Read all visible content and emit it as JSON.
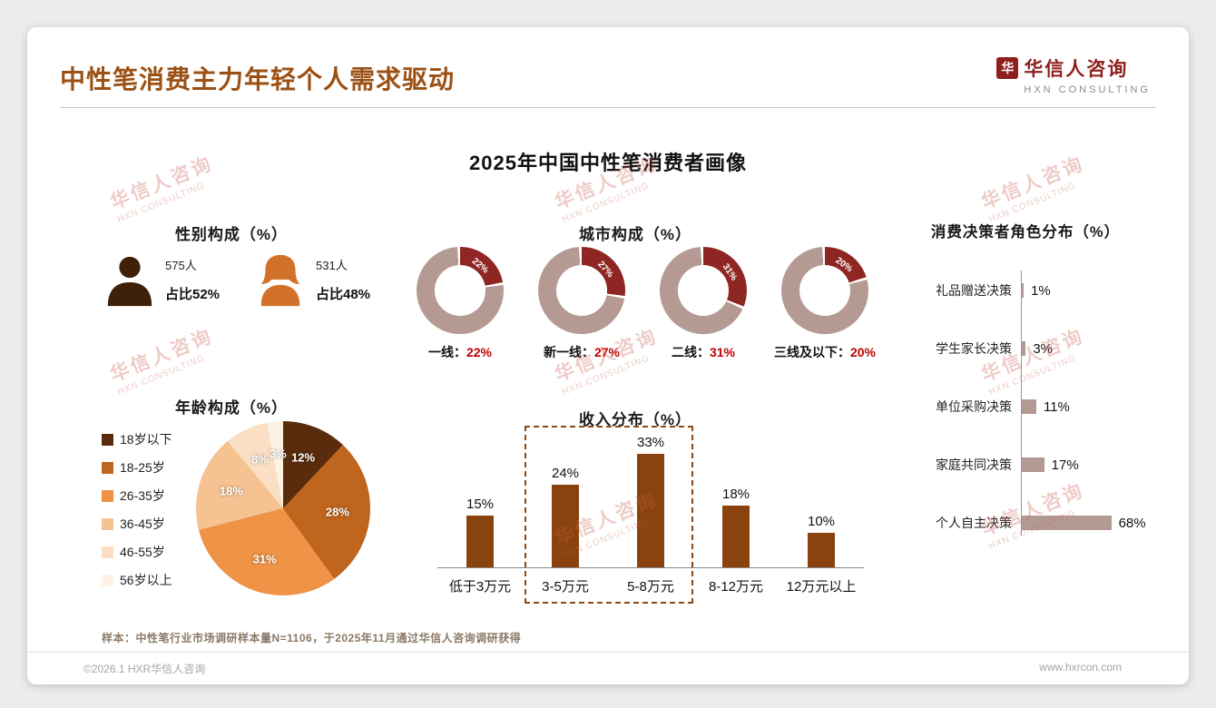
{
  "colors": {
    "accent_brown": "#9c5114",
    "logo_red": "#8e1f1c",
    "donut_base": "#b49a92",
    "donut_highlight": "#8e2723",
    "pct_red": "#c00000",
    "income_bar": "#8a430f",
    "decision_bar": "#b29a93",
    "male_icon": "#3f2008",
    "female_icon": "#d2722a"
  },
  "header": {
    "title": "中性笔消费主力年轻个人需求驱动",
    "logo_mark": "华",
    "logo_text": "华信人咨询",
    "logo_sub": "HXN CONSULTING"
  },
  "main_title": "2025年中国中性笔消费者画像",
  "watermark": {
    "line1": "华信人咨询",
    "line2": "HXN CONSULTING"
  },
  "gender": {
    "heading": "性别构成（%）",
    "male": {
      "count": "575人",
      "share": "占比52%"
    },
    "female": {
      "count": "531人",
      "share": "占比48%"
    }
  },
  "city": {
    "heading": "城市构成（%）",
    "items": [
      {
        "label": "一线：",
        "pct": "22%",
        "value": 22
      },
      {
        "label": "新一线：",
        "pct": "27%",
        "value": 27
      },
      {
        "label": "二线：",
        "pct": "31%",
        "value": 31
      },
      {
        "label": "三线及以下：",
        "pct": "20%",
        "value": 20
      }
    ]
  },
  "age": {
    "heading": "年龄构成（%）",
    "items": [
      {
        "label": "18岁以下",
        "pct": "12%",
        "value": 12,
        "color": "#5a2c0d"
      },
      {
        "label": "18-25岁",
        "pct": "28%",
        "value": 28,
        "color": "#bf651e"
      },
      {
        "label": "26-35岁",
        "pct": "31%",
        "value": 31,
        "color": "#ef9346"
      },
      {
        "label": "36-45岁",
        "pct": "18%",
        "value": 18,
        "color": "#f6c292"
      },
      {
        "label": "46-55岁",
        "pct": "8%",
        "value": 8,
        "color": "#fadfc4"
      },
      {
        "label": "56岁以上",
        "pct": "3%",
        "value": 3,
        "color": "#fdf2e4"
      }
    ]
  },
  "income": {
    "heading": "收入分布（%）",
    "items": [
      {
        "label": "低于3万元",
        "pct": "15%",
        "value": 15
      },
      {
        "label": "3-5万元",
        "pct": "24%",
        "value": 24
      },
      {
        "label": "5-8万元",
        "pct": "33%",
        "value": 33
      },
      {
        "label": "8-12万元",
        "pct": "18%",
        "value": 18
      },
      {
        "label": "12万元以上",
        "pct": "10%",
        "value": 10
      }
    ]
  },
  "decision": {
    "heading": "消费决策者角色分布（%）",
    "items": [
      {
        "label": "礼品赠送决策",
        "pct": "1%",
        "value": 1
      },
      {
        "label": "学生家长决策",
        "pct": "3%",
        "value": 3
      },
      {
        "label": "单位采购决策",
        "pct": "11%",
        "value": 11
      },
      {
        "label": "家庭共同决策",
        "pct": "17%",
        "value": 17
      },
      {
        "label": "个人自主决策",
        "pct": "68%",
        "value": 68
      }
    ]
  },
  "footnote": "样本：中性笔行业市场调研样本量N=1106，于2025年11月通过华信人咨询调研获得",
  "footer": {
    "left": "©2026.1 HXR华信人咨询",
    "right": "www.hxrcon.com"
  },
  "chart_data": [
    {
      "type": "table",
      "title": "性别构成（%）",
      "categories": [
        "男",
        "女"
      ],
      "counts": [
        575,
        531
      ],
      "values": [
        52,
        48
      ]
    },
    {
      "type": "pie",
      "variant": "donut-set",
      "title": "城市构成（%）",
      "categories": [
        "一线",
        "新一线",
        "二线",
        "三线及以下"
      ],
      "values": [
        22,
        27,
        31,
        20
      ],
      "highlight_color": "#8e2723",
      "base_color": "#b49a92"
    },
    {
      "type": "pie",
      "title": "年龄构成（%）",
      "categories": [
        "18岁以下",
        "18-25岁",
        "26-35岁",
        "36-45岁",
        "46-55岁",
        "56岁以上"
      ],
      "values": [
        12,
        28,
        31,
        18,
        8,
        3
      ],
      "legend_position": "left"
    },
    {
      "type": "bar",
      "title": "收入分布（%）",
      "categories": [
        "低于3万元",
        "3-5万元",
        "5-8万元",
        "8-12万元",
        "12万元以上"
      ],
      "values": [
        15,
        24,
        33,
        18,
        10
      ],
      "highlighted_categories": [
        "3-5万元",
        "5-8万元"
      ],
      "ylim": [
        0,
        35
      ],
      "grid": false
    },
    {
      "type": "bar",
      "orientation": "horizontal",
      "title": "消费决策者角色分布（%）",
      "categories": [
        "礼品赠送决策",
        "学生家长决策",
        "单位采购决策",
        "家庭共同决策",
        "个人自主决策"
      ],
      "values": [
        1,
        3,
        11,
        17,
        68
      ],
      "xlim": [
        0,
        70
      ],
      "grid": false
    }
  ]
}
